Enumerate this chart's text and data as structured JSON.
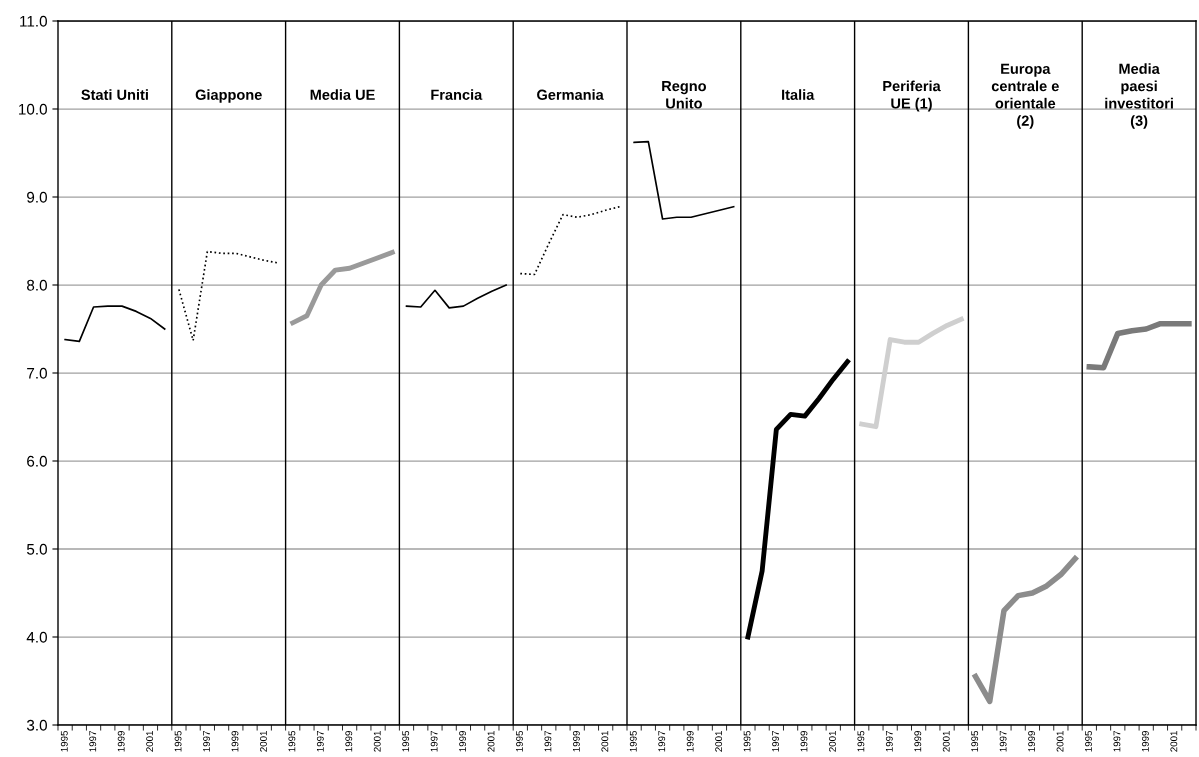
{
  "chart_data": {
    "type": "line",
    "categories": [
      "1995",
      null,
      "1997",
      null,
      "1999",
      null,
      "2001",
      null,
      "1995",
      null,
      "1997",
      null,
      "1999",
      null,
      "2001",
      null,
      "1995",
      null,
      "1997",
      null,
      "1999",
      null,
      "2001",
      null,
      "1995",
      null,
      "1997",
      null,
      "1999",
      null,
      "2001",
      null,
      "1995",
      null,
      "1997",
      null,
      "1999",
      null,
      "2001",
      null,
      "1995",
      null,
      "1997",
      null,
      "1999",
      null,
      "2001",
      null,
      "1995",
      null,
      "1997",
      null,
      "1999",
      null,
      "2001",
      null,
      "1995",
      null,
      "1997",
      null,
      "1999",
      null,
      "2001",
      null,
      "1995",
      null,
      "1997",
      null,
      "1999",
      null,
      "2001",
      null,
      "1995",
      null,
      "1997",
      null,
      "1999",
      null,
      "2001",
      null
    ],
    "ylim": [
      3,
      11
    ],
    "yticks": [
      {
        "value": 3,
        "label": "3.0"
      },
      {
        "value": 4,
        "label": "4.0"
      },
      {
        "value": 5,
        "label": "5.0"
      },
      {
        "value": 6,
        "label": "6.0"
      },
      {
        "value": 7,
        "label": "7.0"
      },
      {
        "value": 8,
        "label": "8.0"
      },
      {
        "value": 9,
        "label": "9.0"
      },
      {
        "value": 10,
        "label": "10.0"
      },
      {
        "value": 11,
        "label": "11.0"
      }
    ],
    "grid": true,
    "annotations": [
      "Stati Uniti",
      "Giappone",
      "Media UE",
      "Francia",
      "Germania",
      "Regno\nUnito",
      "Italia",
      "Periferia\nUE (1)",
      "Europa\ncentrale e\norientale\n(2)",
      "Media\npaesi\ninvestitori\n(3)"
    ],
    "series": [
      {
        "color": "#000000",
        "line_style": "solid",
        "values": [
          7.38,
          7.36,
          7.75,
          7.76,
          7.76,
          7.7,
          7.62,
          7.5,
          null,
          null,
          null,
          null,
          null,
          null,
          null,
          null,
          null,
          null,
          null,
          null,
          null,
          null,
          null,
          null,
          null,
          null,
          null,
          null,
          null,
          null,
          null,
          null,
          null,
          null,
          null,
          null,
          null,
          null,
          null,
          null,
          null,
          null,
          null,
          null,
          null,
          null,
          null,
          null,
          null,
          null,
          null,
          null,
          null,
          null,
          null,
          null,
          null,
          null,
          null,
          null,
          null,
          null,
          null,
          null,
          null,
          null,
          null,
          null,
          null,
          null,
          null,
          null,
          null,
          null,
          null,
          null,
          null,
          null,
          null,
          null
        ]
      },
      {
        "color": "#000000",
        "line_style": "dotted",
        "values": [
          null,
          null,
          null,
          null,
          null,
          null,
          null,
          null,
          7.95,
          7.37,
          8.38,
          8.36,
          8.36,
          8.32,
          8.28,
          8.25,
          null,
          null,
          null,
          null,
          null,
          null,
          null,
          null,
          null,
          null,
          null,
          null,
          null,
          null,
          null,
          null,
          null,
          null,
          null,
          null,
          null,
          null,
          null,
          null,
          null,
          null,
          null,
          null,
          null,
          null,
          null,
          null,
          null,
          null,
          null,
          null,
          null,
          null,
          null,
          null,
          null,
          null,
          null,
          null,
          null,
          null,
          null,
          null,
          null,
          null,
          null,
          null,
          null,
          null,
          null,
          null,
          null,
          null,
          null,
          null,
          null,
          null,
          null,
          null
        ]
      },
      {
        "color": "#9a9a9a",
        "line_style": "solid",
        "values": [
          null,
          null,
          null,
          null,
          null,
          null,
          null,
          null,
          null,
          null,
          null,
          null,
          null,
          null,
          null,
          null,
          7.57,
          7.65,
          8.0,
          8.17,
          8.19,
          8.25,
          8.31,
          8.37,
          null,
          null,
          null,
          null,
          null,
          null,
          null,
          null,
          null,
          null,
          null,
          null,
          null,
          null,
          null,
          null,
          null,
          null,
          null,
          null,
          null,
          null,
          null,
          null,
          null,
          null,
          null,
          null,
          null,
          null,
          null,
          null,
          null,
          null,
          null,
          null,
          null,
          null,
          null,
          null,
          null,
          null,
          null,
          null,
          null,
          null,
          null,
          null,
          null,
          null,
          null,
          null,
          null,
          null,
          null,
          null
        ]
      },
      {
        "color": "#000000",
        "line_style": "solid",
        "values": [
          null,
          null,
          null,
          null,
          null,
          null,
          null,
          null,
          null,
          null,
          null,
          null,
          null,
          null,
          null,
          null,
          null,
          null,
          null,
          null,
          null,
          null,
          null,
          null,
          7.76,
          7.75,
          7.94,
          7.74,
          7.76,
          7.85,
          7.93,
          8.0,
          null,
          null,
          null,
          null,
          null,
          null,
          null,
          null,
          null,
          null,
          null,
          null,
          null,
          null,
          null,
          null,
          null,
          null,
          null,
          null,
          null,
          null,
          null,
          null,
          null,
          null,
          null,
          null,
          null,
          null,
          null,
          null,
          null,
          null,
          null,
          null,
          null,
          null,
          null,
          null,
          null,
          null,
          null,
          null,
          null,
          null,
          null,
          null
        ]
      },
      {
        "color": "#000000",
        "line_style": "dotted",
        "values": [
          null,
          null,
          null,
          null,
          null,
          null,
          null,
          null,
          null,
          null,
          null,
          null,
          null,
          null,
          null,
          null,
          null,
          null,
          null,
          null,
          null,
          null,
          null,
          null,
          null,
          null,
          null,
          null,
          null,
          null,
          null,
          null,
          8.13,
          8.12,
          8.47,
          8.8,
          8.77,
          8.8,
          8.85,
          8.89,
          null,
          null,
          null,
          null,
          null,
          null,
          null,
          null,
          null,
          null,
          null,
          null,
          null,
          null,
          null,
          null,
          null,
          null,
          null,
          null,
          null,
          null,
          null,
          null,
          null,
          null,
          null,
          null,
          null,
          null,
          null,
          null,
          null,
          null,
          null,
          null,
          null,
          null,
          null,
          null
        ]
      },
      {
        "color": "#000000",
        "line_style": "solid",
        "values": [
          null,
          null,
          null,
          null,
          null,
          null,
          null,
          null,
          null,
          null,
          null,
          null,
          null,
          null,
          null,
          null,
          null,
          null,
          null,
          null,
          null,
          null,
          null,
          null,
          null,
          null,
          null,
          null,
          null,
          null,
          null,
          null,
          null,
          null,
          null,
          null,
          null,
          null,
          null,
          null,
          9.62,
          9.63,
          8.75,
          8.77,
          8.77,
          8.81,
          8.85,
          8.89,
          null,
          null,
          null,
          null,
          null,
          null,
          null,
          null,
          null,
          null,
          null,
          null,
          null,
          null,
          null,
          null,
          null,
          null,
          null,
          null,
          null,
          null,
          null,
          null,
          null,
          null,
          null,
          null,
          null,
          null,
          null,
          null
        ]
      },
      {
        "color": "#000000",
        "line_style": "solid",
        "values": [
          null,
          null,
          null,
          null,
          null,
          null,
          null,
          null,
          null,
          null,
          null,
          null,
          null,
          null,
          null,
          null,
          null,
          null,
          null,
          null,
          null,
          null,
          null,
          null,
          null,
          null,
          null,
          null,
          null,
          null,
          null,
          null,
          null,
          null,
          null,
          null,
          null,
          null,
          null,
          null,
          null,
          null,
          null,
          null,
          null,
          null,
          null,
          null,
          4.0,
          4.75,
          6.36,
          6.53,
          6.51,
          6.71,
          6.93,
          7.13,
          null,
          null,
          null,
          null,
          null,
          null,
          null,
          null,
          null,
          null,
          null,
          null,
          null,
          null,
          null,
          null,
          null,
          null,
          null,
          null,
          null,
          null,
          null,
          null
        ]
      },
      {
        "color": "#cfcfcf",
        "line_style": "solid",
        "values": [
          null,
          null,
          null,
          null,
          null,
          null,
          null,
          null,
          null,
          null,
          null,
          null,
          null,
          null,
          null,
          null,
          null,
          null,
          null,
          null,
          null,
          null,
          null,
          null,
          null,
          null,
          null,
          null,
          null,
          null,
          null,
          null,
          null,
          null,
          null,
          null,
          null,
          null,
          null,
          null,
          null,
          null,
          null,
          null,
          null,
          null,
          null,
          null,
          null,
          null,
          null,
          null,
          null,
          null,
          null,
          null,
          6.42,
          6.39,
          7.38,
          7.35,
          7.35,
          7.45,
          7.54,
          7.61,
          null,
          null,
          null,
          null,
          null,
          null,
          null,
          null,
          null,
          null,
          null,
          null,
          null,
          null,
          null,
          null
        ]
      },
      {
        "color": "#8c8c8c",
        "line_style": "solid",
        "values": [
          null,
          null,
          null,
          null,
          null,
          null,
          null,
          null,
          null,
          null,
          null,
          null,
          null,
          null,
          null,
          null,
          null,
          null,
          null,
          null,
          null,
          null,
          null,
          null,
          null,
          null,
          null,
          null,
          null,
          null,
          null,
          null,
          null,
          null,
          null,
          null,
          null,
          null,
          null,
          null,
          null,
          null,
          null,
          null,
          null,
          null,
          null,
          null,
          null,
          null,
          null,
          null,
          null,
          null,
          null,
          null,
          null,
          null,
          null,
          null,
          null,
          null,
          null,
          null,
          3.55,
          3.27,
          4.3,
          4.47,
          4.5,
          4.58,
          4.71,
          4.89,
          null,
          null,
          null,
          null,
          null,
          null,
          null,
          null
        ]
      },
      {
        "color": "#7a7a7a",
        "line_style": "solid",
        "values": [
          null,
          null,
          null,
          null,
          null,
          null,
          null,
          null,
          null,
          null,
          null,
          null,
          null,
          null,
          null,
          null,
          null,
          null,
          null,
          null,
          null,
          null,
          null,
          null,
          null,
          null,
          null,
          null,
          null,
          null,
          null,
          null,
          null,
          null,
          null,
          null,
          null,
          null,
          null,
          null,
          null,
          null,
          null,
          null,
          null,
          null,
          null,
          null,
          null,
          null,
          null,
          null,
          null,
          null,
          null,
          null,
          null,
          null,
          null,
          null,
          null,
          null,
          null,
          null,
          null,
          null,
          null,
          null,
          null,
          null,
          null,
          null,
          7.07,
          7.06,
          7.45,
          7.48,
          7.5,
          7.56,
          7.56,
          7.56
        ]
      }
    ]
  }
}
